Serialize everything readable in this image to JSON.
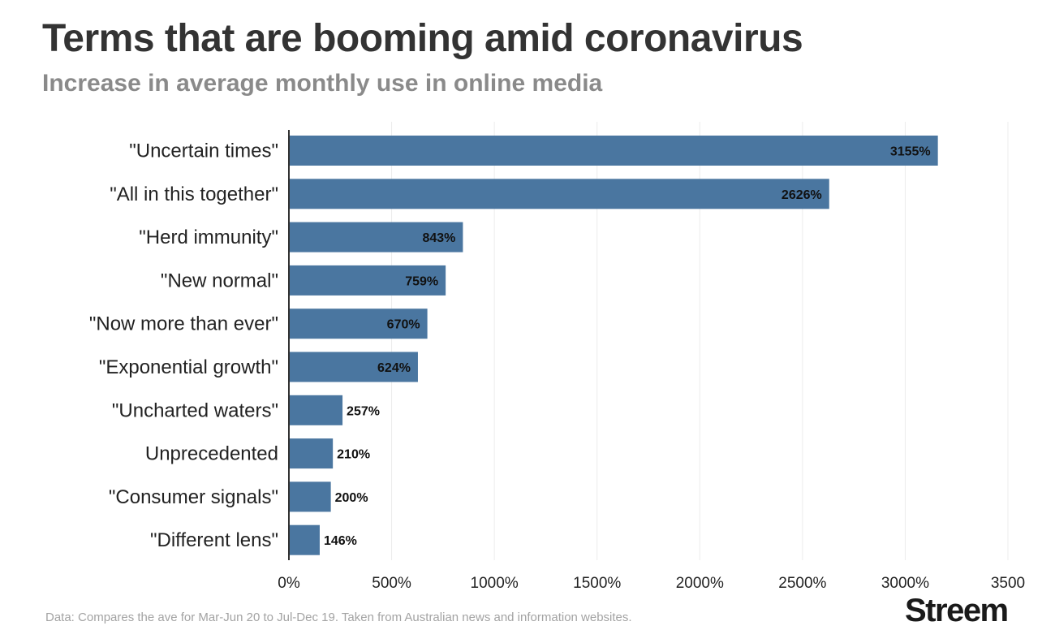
{
  "header": {
    "title": "Terms that are booming amid coronavirus",
    "subtitle": "Increase in average monthly use in online media"
  },
  "footer": {
    "source": "Data: Compares the ave for Mar-Jun 20 to Jul-Dec 19. Taken from Australian news and information websites.",
    "brand": "Streem"
  },
  "colors": {
    "bar": "#4a76a0",
    "grid": "#ececec",
    "axis": "#333333"
  },
  "chart_data": {
    "type": "bar",
    "orientation": "horizontal",
    "title": "Terms that are booming amid coronavirus",
    "subtitle": "Increase in average monthly use in online media",
    "categories": [
      "\"Uncertain times\"",
      "\"All in this together\"",
      "\"Herd immunity\"",
      "\"New normal\"",
      "\"Now more than ever\"",
      "\"Exponential growth\"",
      "\"Uncharted waters\"",
      "Unprecedented",
      "\"Consumer signals\"",
      "\"Different lens\""
    ],
    "values": [
      3155,
      2626,
      843,
      759,
      670,
      624,
      257,
      210,
      200,
      146
    ],
    "value_labels": [
      "3155%",
      "2626%",
      "843%",
      "759%",
      "670%",
      "624%",
      "257%",
      "210%",
      "200%",
      "146%"
    ],
    "xlim": [
      0,
      3500
    ],
    "xticks": [
      0,
      500,
      1000,
      1500,
      2000,
      2500,
      3000,
      3500
    ],
    "xtick_labels": [
      "0%",
      "500%",
      "1000%",
      "1500%",
      "2000%",
      "2500%",
      "3000%",
      "3500"
    ],
    "xlabel": "",
    "ylabel": "",
    "grid": true,
    "legend": "none"
  }
}
